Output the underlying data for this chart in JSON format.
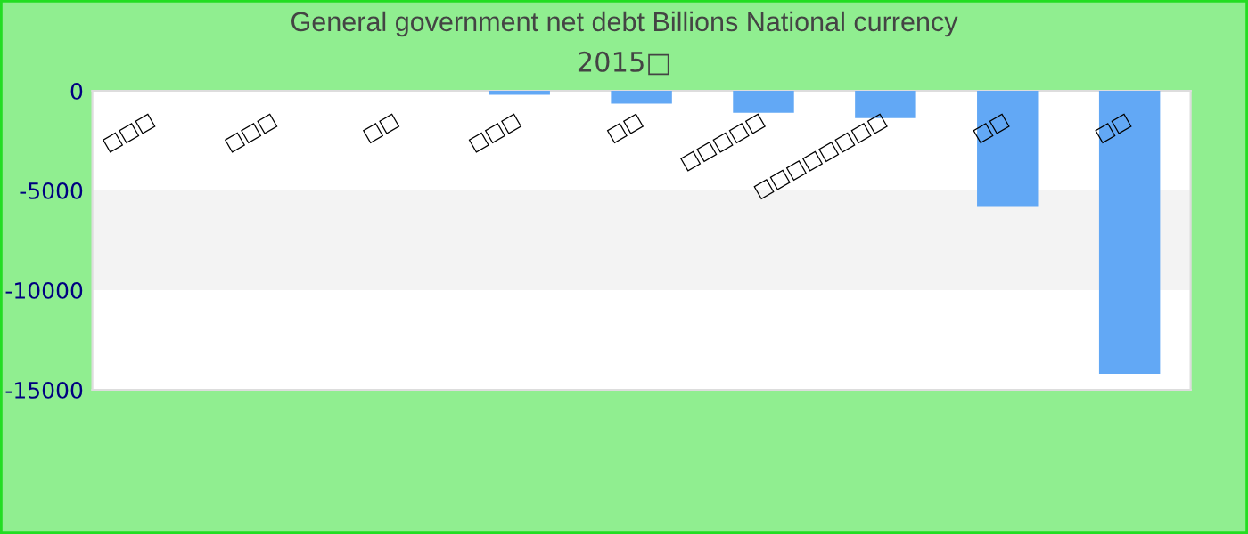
{
  "chart_data": {
    "type": "bar",
    "title": "General government net debt Billions National currency",
    "subtitle": "2015□",
    "categories": [
      "□□□",
      "□□□",
      "□□",
      "□□□",
      "□□",
      "□□□□□",
      "□□□□□□□□",
      "□□",
      "□□"
    ],
    "series": [
      {
        "color": "#62a8f5",
        "values": [
          null,
          null,
          null,
          -200,
          -650,
          -1100,
          -1370,
          -5830,
          -14200
        ]
      }
    ],
    "ylim": [
      -15000,
      0
    ],
    "yticks": [
      -15000,
      -10000,
      -5000,
      0
    ],
    "bands": [
      {
        "axis": "y",
        "from": -10000,
        "to": -5000,
        "color": "#f3f3f3"
      }
    ],
    "grid": false,
    "legend": false
  }
}
